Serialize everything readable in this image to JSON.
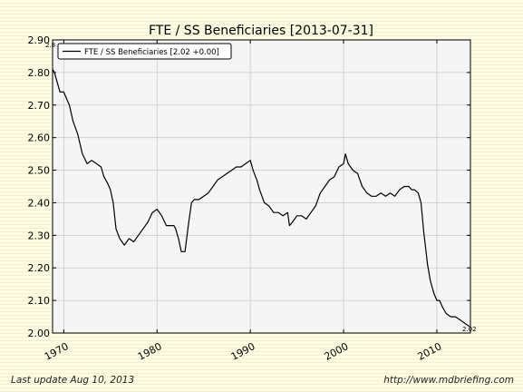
{
  "footer": {
    "last_update": "Last update Aug 10, 2013",
    "url": "http://www.mdbriefing.com"
  },
  "colors": {
    "background": "#fffde4",
    "plot_background": "#f5f5f5",
    "line": "#000000",
    "grid": "#cccccc"
  },
  "chart_data": {
    "type": "line",
    "title": "FTE / SS Beneficiaries  [2013-07-31]",
    "xlabel": "",
    "ylabel": "",
    "xlim": [
      1968.8,
      2013.6
    ],
    "ylim": [
      2.0,
      2.9
    ],
    "x_ticks": [
      1970,
      1980,
      1990,
      2000,
      2010
    ],
    "x_tick_labels": [
      "1970",
      "1980",
      "1990",
      "2000",
      "2010"
    ],
    "y_ticks": [
      2.0,
      2.1,
      2.2,
      2.3,
      2.4,
      2.5,
      2.6,
      2.7,
      2.8,
      2.9
    ],
    "y_tick_labels": [
      "2.00",
      "2.10",
      "2.20",
      "2.30",
      "2.40",
      "2.50",
      "2.60",
      "2.70",
      "2.80",
      "2.90"
    ],
    "grid": true,
    "legend_position": "top-left",
    "annotations": {
      "start": "2.8",
      "end": "2.02"
    },
    "series": [
      {
        "name": "FTE / SS Beneficiaries [2.02 +0.00]",
        "x": [
          1968.8,
          1969.0,
          1969.3,
          1969.6,
          1970.0,
          1970.3,
          1970.6,
          1971.0,
          1971.5,
          1972.0,
          1972.5,
          1973.0,
          1973.5,
          1974.0,
          1974.3,
          1974.7,
          1975.0,
          1975.3,
          1975.6,
          1976.0,
          1976.5,
          1977.0,
          1977.5,
          1978.0,
          1978.5,
          1979.0,
          1979.5,
          1980.0,
          1980.5,
          1981.0,
          1981.5,
          1981.8,
          1982.0,
          1982.3,
          1982.6,
          1983.0,
          1983.4,
          1983.7,
          1984.0,
          1984.5,
          1985.0,
          1985.5,
          1986.0,
          1986.5,
          1987.0,
          1987.5,
          1988.0,
          1988.5,
          1989.0,
          1989.5,
          1990.0,
          1990.3,
          1990.7,
          1991.0,
          1991.5,
          1992.0,
          1992.5,
          1993.0,
          1993.5,
          1994.0,
          1994.2,
          1994.5,
          1995.0,
          1995.5,
          1996.0,
          1996.5,
          1997.0,
          1997.5,
          1998.0,
          1998.5,
          1999.0,
          1999.5,
          2000.0,
          2000.2,
          2000.5,
          2001.0,
          2001.5,
          2002.0,
          2002.5,
          2003.0,
          2003.5,
          2004.0,
          2004.5,
          2005.0,
          2005.5,
          2006.0,
          2006.5,
          2007.0,
          2007.3,
          2007.6,
          2008.0,
          2008.3,
          2008.6,
          2009.0,
          2009.3,
          2009.7,
          2010.0,
          2010.3,
          2010.6,
          2011.0,
          2011.5,
          2012.0,
          2012.5,
          2013.0,
          2013.5
        ],
        "values": [
          2.81,
          2.8,
          2.77,
          2.74,
          2.74,
          2.72,
          2.7,
          2.65,
          2.61,
          2.55,
          2.52,
          2.53,
          2.52,
          2.51,
          2.48,
          2.46,
          2.44,
          2.4,
          2.32,
          2.29,
          2.27,
          2.29,
          2.28,
          2.3,
          2.32,
          2.34,
          2.37,
          2.38,
          2.36,
          2.33,
          2.33,
          2.33,
          2.32,
          2.29,
          2.25,
          2.25,
          2.34,
          2.4,
          2.41,
          2.41,
          2.42,
          2.43,
          2.45,
          2.47,
          2.48,
          2.49,
          2.5,
          2.51,
          2.51,
          2.52,
          2.53,
          2.5,
          2.47,
          2.44,
          2.4,
          2.39,
          2.37,
          2.37,
          2.36,
          2.37,
          2.33,
          2.34,
          2.36,
          2.36,
          2.35,
          2.37,
          2.39,
          2.43,
          2.45,
          2.47,
          2.48,
          2.51,
          2.52,
          2.55,
          2.52,
          2.5,
          2.49,
          2.45,
          2.43,
          2.42,
          2.42,
          2.43,
          2.42,
          2.43,
          2.42,
          2.44,
          2.45,
          2.45,
          2.44,
          2.44,
          2.43,
          2.4,
          2.31,
          2.21,
          2.16,
          2.12,
          2.1,
          2.1,
          2.08,
          2.06,
          2.05,
          2.05,
          2.04,
          2.03,
          2.02
        ]
      }
    ]
  }
}
